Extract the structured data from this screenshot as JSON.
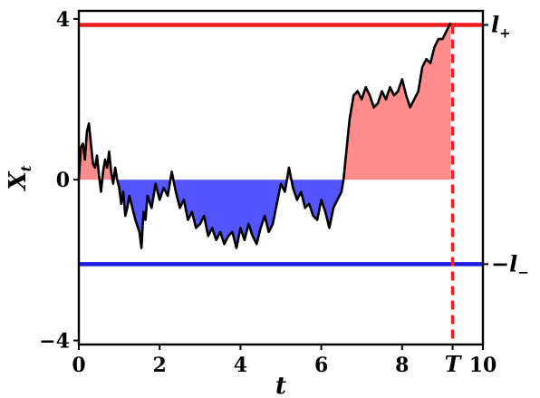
{
  "chart_data": {
    "type": "line",
    "xlabel": "t",
    "ylabel": "X",
    "ylabel_sub": "t",
    "xlim": [
      0,
      10
    ],
    "ylim": [
      -4.1,
      4.2
    ],
    "xticks": [
      0,
      2,
      4,
      6,
      8,
      10
    ],
    "xtick_labels": [
      "0",
      "2",
      "4",
      "6",
      "8",
      "10"
    ],
    "yticks": [
      -4,
      0,
      4
    ],
    "ytick_labels": [
      "−4",
      "0",
      "4"
    ],
    "grid": false,
    "series": [
      {
        "x": [
          0.0,
          0.05,
          0.1,
          0.15,
          0.2,
          0.25,
          0.3,
          0.35,
          0.4,
          0.45,
          0.5,
          0.55,
          0.6,
          0.65,
          0.7,
          0.75,
          0.8,
          0.85,
          0.9,
          0.95,
          1.0,
          1.05,
          1.1,
          1.15,
          1.2,
          1.25,
          1.3,
          1.4,
          1.5,
          1.55,
          1.6,
          1.65,
          1.7,
          1.8,
          1.9,
          2.0,
          2.1,
          2.2,
          2.3,
          2.4,
          2.5,
          2.6,
          2.7,
          2.8,
          2.9,
          3.0,
          3.1,
          3.2,
          3.3,
          3.4,
          3.5,
          3.6,
          3.7,
          3.8,
          3.9,
          4.0,
          4.1,
          4.2,
          4.3,
          4.4,
          4.5,
          4.6,
          4.7,
          4.8,
          4.9,
          5.0,
          5.1,
          5.2,
          5.3,
          5.4,
          5.5,
          5.6,
          5.7,
          5.8,
          5.9,
          6.0,
          6.1,
          6.2,
          6.3,
          6.4,
          6.5,
          6.55,
          6.6,
          6.7,
          6.8,
          6.9,
          7.0,
          7.1,
          7.2,
          7.3,
          7.4,
          7.5,
          7.6,
          7.7,
          7.8,
          7.9,
          8.0,
          8.1,
          8.2,
          8.3,
          8.4,
          8.5,
          8.6,
          8.7,
          8.8,
          8.9,
          9.0,
          9.1,
          9.2
        ],
        "y": [
          0.0,
          0.8,
          0.9,
          0.5,
          1.2,
          1.4,
          0.9,
          0.4,
          0.3,
          0.6,
          0.1,
          -0.3,
          0.2,
          0.5,
          0.3,
          0.7,
          0.2,
          -0.1,
          0.3,
          0.0,
          -0.2,
          -0.6,
          -0.3,
          -0.9,
          -0.7,
          -0.4,
          -0.6,
          -1.0,
          -1.3,
          -1.7,
          -0.8,
          -1.0,
          -0.4,
          -0.7,
          -0.1,
          -0.5,
          -0.2,
          -0.4,
          0.2,
          -0.3,
          -0.7,
          -0.5,
          -1.0,
          -0.8,
          -1.2,
          -1.1,
          -0.9,
          -1.4,
          -1.2,
          -1.5,
          -1.3,
          -1.6,
          -1.4,
          -1.3,
          -1.7,
          -1.2,
          -1.5,
          -1.1,
          -1.4,
          -1.6,
          -1.2,
          -0.9,
          -1.3,
          -1.1,
          -0.6,
          -0.1,
          -0.3,
          0.3,
          -0.2,
          -0.5,
          -0.3,
          -0.7,
          -0.6,
          -0.9,
          -1.0,
          -0.5,
          -0.8,
          -1.2,
          -0.7,
          -0.5,
          -0.3,
          0.0,
          0.5,
          1.5,
          2.1,
          2.2,
          2.0,
          2.3,
          2.1,
          1.8,
          1.9,
          2.2,
          2.0,
          2.3,
          2.1,
          2.2,
          2.5,
          2.1,
          1.8,
          2.0,
          2.2,
          2.8,
          3.0,
          2.9,
          3.3,
          3.5,
          3.5,
          3.7,
          3.9
        ]
      }
    ],
    "shading": {
      "above_zero_color": "#ff8c8c",
      "below_zero_color": "#5555ff"
    },
    "line_color": "#000000",
    "hlines": [
      {
        "y": 3.85,
        "color": "#ee1c1c",
        "label": "l",
        "label_sub": "+"
      },
      {
        "y": -2.1,
        "color": "#1c1ce6",
        "label": "−l",
        "label_sub": "−"
      }
    ],
    "vline": {
      "x": 9.25,
      "color": "#ee2222",
      "style": "dashed",
      "label": "T"
    }
  }
}
